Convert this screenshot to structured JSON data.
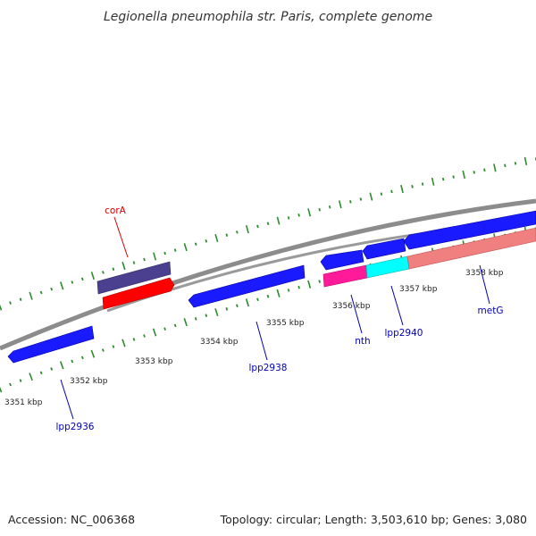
{
  "title": "Legionella pneumophila str. Paris, complete genome",
  "footer": {
    "accession": "Accession: NC_006368",
    "summary": "Topology: circular; Length: 3,503,610 bp; Genes: 3,080"
  },
  "colors": {
    "backbone": "#8c8c8c",
    "tick_green": "#2e8b2e",
    "gene_blue": "#1a1aff",
    "gene_slate": "#4b3f8f",
    "gene_red": "#ff0000",
    "gene_magenta": "#ff1a99",
    "gene_cyan": "#00ffff",
    "gene_salmon": "#f08080",
    "label_red": "#d40000",
    "label_blue": "#0000b4"
  },
  "axis": {
    "tick_labels": [
      "3351 kbp",
      "3352 kbp",
      "3353 kbp",
      "3354 kbp",
      "3355 kbp",
      "3356 kbp",
      "3357 kbp",
      "3358 kbp"
    ]
  },
  "genes": [
    {
      "name": "corA",
      "color": "gene_red",
      "label_color": "label_red"
    },
    {
      "name": "lpp2936",
      "color": "gene_blue",
      "label_color": "label_blue"
    },
    {
      "name": "lpp2938",
      "color": "gene_blue",
      "label_color": "label_blue"
    },
    {
      "name": "nth",
      "color": "gene_magenta",
      "label_color": "label_blue"
    },
    {
      "name": "lpp2940",
      "color": "gene_cyan",
      "label_color": "label_blue"
    },
    {
      "name": "metG",
      "color": "gene_salmon",
      "label_color": "label_blue"
    }
  ]
}
